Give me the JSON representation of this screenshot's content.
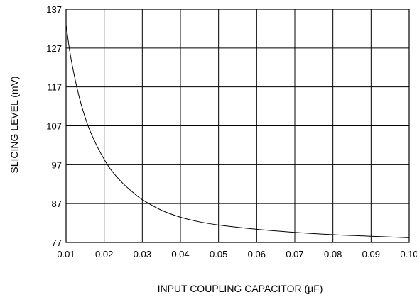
{
  "chart_data": {
    "type": "line",
    "title": "",
    "xlabel": "INPUT COUPLING CAPACITOR (µF)",
    "ylabel": "SLICING LEVEL (mV)",
    "xlim": [
      0.01,
      0.1
    ],
    "ylim": [
      77,
      137
    ],
    "grid": true,
    "x_ticks": [
      0.01,
      0.02,
      0.03,
      0.04,
      0.05,
      0.06,
      0.07,
      0.08,
      0.09,
      0.1
    ],
    "x_tick_labels": [
      "0.01",
      "0.02",
      "0.03",
      "0.04",
      "0.05",
      "0.06",
      "0.07",
      "0.08",
      "0.09",
      "0.10"
    ],
    "y_ticks": [
      77,
      87,
      97,
      107,
      117,
      127,
      137
    ],
    "y_tick_labels": [
      "77",
      "87",
      "97",
      "107",
      "117",
      "127",
      "137"
    ],
    "series": [
      {
        "color": "#000000",
        "x": [
          0.01,
          0.011,
          0.012,
          0.013,
          0.014,
          0.015,
          0.016,
          0.018,
          0.02,
          0.022,
          0.025,
          0.028,
          0.03,
          0.035,
          0.04,
          0.045,
          0.05,
          0.06,
          0.07,
          0.08,
          0.09,
          0.1
        ],
        "y": [
          133,
          126,
          120.7,
          116.2,
          112.4,
          109.2,
          106.4,
          102.0,
          98.4,
          95.4,
          92.1,
          89.5,
          88.0,
          85.3,
          83.5,
          82.3,
          81.5,
          80.4,
          79.6,
          79.0,
          78.6,
          78.2
        ]
      }
    ]
  }
}
